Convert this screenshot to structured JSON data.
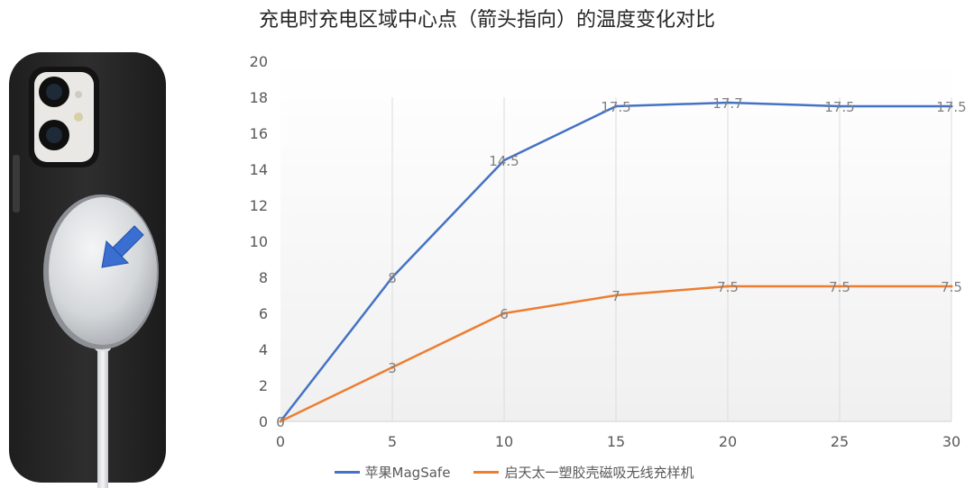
{
  "title": "充电时充电区域中心点（箭头指向）的温度变化对比",
  "chart_data": {
    "type": "line",
    "title": "充电时充电区域中心点（箭头指向）的温度变化对比",
    "x": [
      0,
      5,
      10,
      15,
      20,
      25,
      30
    ],
    "xticks": [
      "0",
      "5",
      "10",
      "15",
      "20",
      "25",
      "30"
    ],
    "yticks": [
      "0",
      "2",
      "4",
      "6",
      "8",
      "10",
      "12",
      "14",
      "16",
      "18",
      "20"
    ],
    "xlim": [
      0,
      30
    ],
    "ylim": [
      0,
      20
    ],
    "grid": "vertical",
    "legend": "bottom",
    "series": [
      {
        "name": "苹果MagSafe",
        "color": "#4472C4",
        "values": [
          0,
          8,
          14.5,
          17.5,
          17.7,
          17.5,
          17.5
        ],
        "labels": [
          "0",
          "8",
          "14.5",
          "17.5",
          "17.7",
          "17.5",
          "17.5"
        ]
      },
      {
        "name": "启天太一塑胶壳磁吸无线充样机",
        "color": "#ED7D31",
        "values": [
          0,
          3,
          6,
          7,
          7.5,
          7.5,
          7.5
        ],
        "labels": [
          "0",
          "3",
          "6",
          "7",
          "7.5",
          "7.5",
          "7.5"
        ]
      }
    ]
  },
  "photo": {
    "case_color": "#2b2a2a",
    "charger_color": "#c9ccd0",
    "arrow_color": "#3a6fd1",
    "icon": "phone-with-magsafe-charger-icon"
  }
}
